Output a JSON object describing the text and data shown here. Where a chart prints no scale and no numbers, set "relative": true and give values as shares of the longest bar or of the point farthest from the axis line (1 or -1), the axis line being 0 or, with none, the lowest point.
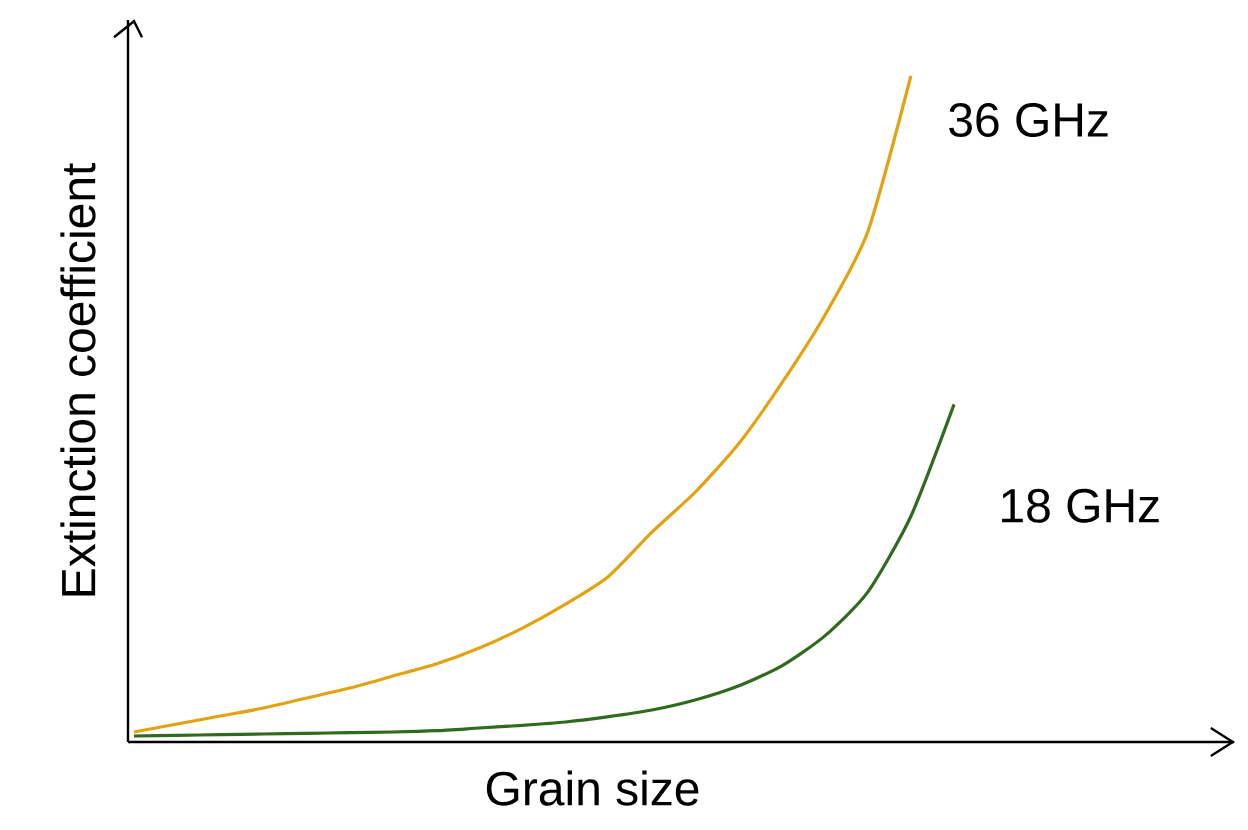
{
  "chart_data": {
    "type": "line",
    "relative": true,
    "xlabel": "Grain size",
    "ylabel": "Extinction coefficient",
    "categories": [
      null,
      null,
      null,
      null,
      null,
      null,
      null,
      null,
      null,
      null,
      null,
      null,
      null,
      null,
      null,
      null,
      null,
      null,
      null,
      null
    ],
    "series": [
      {
        "name": "36 GHz",
        "color": "#e3a20f",
        "values": [
          0.015,
          0.027,
          0.039,
          0.051,
          0.066,
          0.081,
          0.099,
          0.117,
          0.141,
          0.171,
          0.207,
          0.249,
          0.315,
          0.375,
          0.447,
          0.538,
          0.64,
          0.766,
          1,
          null
        ]
      },
      {
        "name": "18 GHz",
        "color": "#2f6a1e",
        "values": [
          0.009,
          0.01,
          0.011,
          0.012,
          0.013,
          0.014,
          0.015,
          0.017,
          0.021,
          0.025,
          0.03,
          0.038,
          0.048,
          0.063,
          0.084,
          0.114,
          0.159,
          0.225,
          0.339,
          0.507
        ]
      }
    ]
  }
}
